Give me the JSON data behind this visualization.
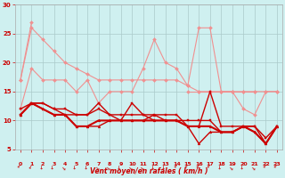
{
  "x": [
    0,
    1,
    2,
    3,
    4,
    5,
    6,
    7,
    8,
    9,
    10,
    11,
    12,
    13,
    14,
    15,
    16,
    17,
    18,
    19,
    20,
    21,
    22,
    23
  ],
  "series": [
    {
      "color": "#f09090",
      "linewidth": 0.8,
      "marker": "D",
      "markersize": 2,
      "y": [
        17,
        27,
        null,
        null,
        null,
        null,
        null,
        null,
        null,
        null,
        null,
        null,
        null,
        null,
        null,
        null,
        null,
        null,
        null,
        null,
        null,
        null,
        null,
        null
      ]
    },
    {
      "color": "#f09090",
      "linewidth": 0.8,
      "marker": "D",
      "markersize": 2,
      "y": [
        17,
        26,
        24,
        22,
        20,
        19,
        18,
        17,
        17,
        17,
        17,
        17,
        17,
        17,
        17,
        16,
        15,
        15,
        15,
        15,
        15,
        15,
        15,
        15
      ]
    },
    {
      "color": "#f09090",
      "linewidth": 0.8,
      "marker": "D",
      "markersize": 2,
      "y": [
        12,
        19,
        17,
        17,
        17,
        15,
        17,
        13,
        15,
        15,
        15,
        19,
        24,
        20,
        19,
        16,
        26,
        26,
        15,
        15,
        12,
        11,
        15,
        15
      ]
    },
    {
      "color": "#f09090",
      "linewidth": 0.8,
      "marker": "D",
      "markersize": 2,
      "y": [
        null,
        null,
        null,
        null,
        null,
        null,
        null,
        null,
        null,
        null,
        null,
        null,
        null,
        null,
        null,
        15,
        15,
        15,
        15,
        15,
        15,
        15,
        null,
        15
      ]
    },
    {
      "color": "#cc0000",
      "linewidth": 1.0,
      "marker": "s",
      "markersize": 2,
      "y": [
        12,
        13,
        13,
        12,
        12,
        11,
        11,
        13,
        11,
        10,
        13,
        11,
        11,
        11,
        11,
        9,
        9,
        15,
        9,
        9,
        9,
        9,
        7,
        9
      ]
    },
    {
      "color": "#cc0000",
      "linewidth": 1.0,
      "marker": "s",
      "markersize": 2,
      "y": [
        11,
        13,
        13,
        12,
        11,
        11,
        11,
        12,
        11,
        11,
        11,
        11,
        10,
        10,
        10,
        10,
        10,
        10,
        8,
        8,
        9,
        9,
        6,
        9
      ]
    },
    {
      "color": "#cc0000",
      "linewidth": 1.0,
      "marker": "^",
      "markersize": 2,
      "y": [
        11,
        13,
        12,
        11,
        11,
        9,
        9,
        9,
        10,
        10,
        10,
        10,
        11,
        10,
        10,
        9,
        6,
        8,
        8,
        8,
        9,
        8,
        6,
        9
      ]
    },
    {
      "color": "#cc0000",
      "linewidth": 1.5,
      "marker": "^",
      "markersize": 2,
      "y": [
        11,
        13,
        12,
        11,
        11,
        9,
        9,
        10,
        10,
        10,
        10,
        10,
        10,
        10,
        10,
        9,
        9,
        9,
        8,
        8,
        9,
        8,
        6,
        9
      ]
    }
  ],
  "xlabel": "Vent moyen/en rafales ( km/h )",
  "xlim": [
    -0.5,
    23.5
  ],
  "ylim": [
    5,
    30
  ],
  "yticks": [
    5,
    10,
    15,
    20,
    25,
    30
  ],
  "xticks": [
    0,
    1,
    2,
    3,
    4,
    5,
    6,
    7,
    8,
    9,
    10,
    11,
    12,
    13,
    14,
    15,
    16,
    17,
    18,
    19,
    20,
    21,
    22,
    23
  ],
  "bg_color": "#cff0f0",
  "grid_color": "#aacaca",
  "arrow_angles": [
    225,
    240,
    270,
    270,
    315,
    270,
    270,
    315,
    315,
    270,
    315,
    315,
    270,
    270,
    225,
    225,
    225,
    225,
    270,
    315,
    270,
    315,
    225,
    225
  ]
}
